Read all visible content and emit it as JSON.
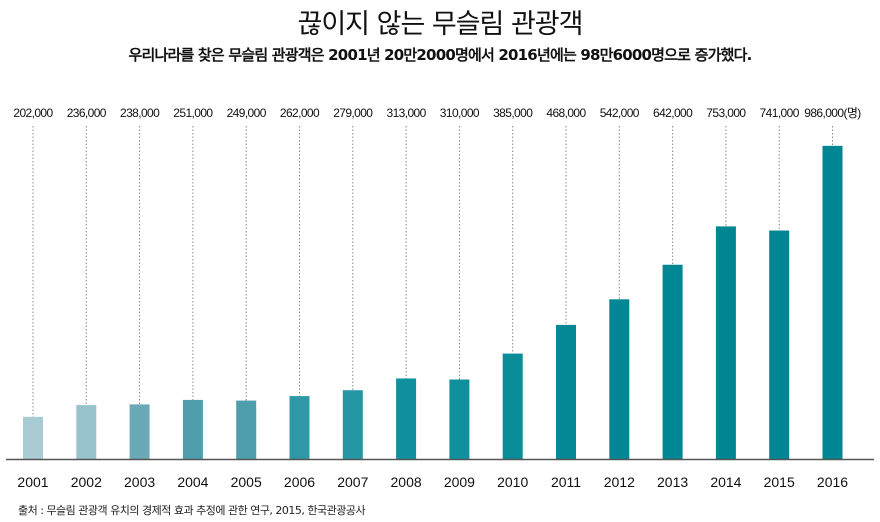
{
  "chart_data": {
    "type": "bar",
    "title": "끊이지 않는 무슬림 관광객",
    "subtitle": "우리나라를 찾은  무슬림 관광객은 2001년 20만2000명에서 2016년에는 98만6000명으로 증가했다.",
    "categories": [
      "2001",
      "2002",
      "2003",
      "2004",
      "2005",
      "2006",
      "2007",
      "2008",
      "2009",
      "2010",
      "2011",
      "2012",
      "2013",
      "2014",
      "2015",
      "2016"
    ],
    "values": [
      202000,
      236000,
      238000,
      251000,
      249000,
      262000,
      279000,
      313000,
      310000,
      385000,
      468000,
      542000,
      642000,
      753000,
      741000,
      986000
    ],
    "data_labels": [
      "202,000",
      "236,000",
      "238,000",
      "251,000",
      "249,000",
      "262,000",
      "279,000",
      "313,000",
      "310,000",
      "385,000",
      "468,000",
      "542,000",
      "642,000",
      "753,000",
      "741,000",
      "986,000(명)"
    ],
    "ylim": [
      80000,
      1000000
    ],
    "grid": false,
    "colors": [
      "#a9cbd3",
      "#98c3cc",
      "#6aaab7",
      "#4f9eac",
      "#4f9eac",
      "#2e98a6",
      "#2596a4",
      "#10909e",
      "#10909e",
      "#0a8c99",
      "#058896",
      "#038794",
      "#018693",
      "#008592",
      "#008592",
      "#008592"
    ],
    "source": "출처 : 무슬림 관광객 유치의 경제적 효과 추정에 관한 연구, 2015, 한국관광공사"
  }
}
